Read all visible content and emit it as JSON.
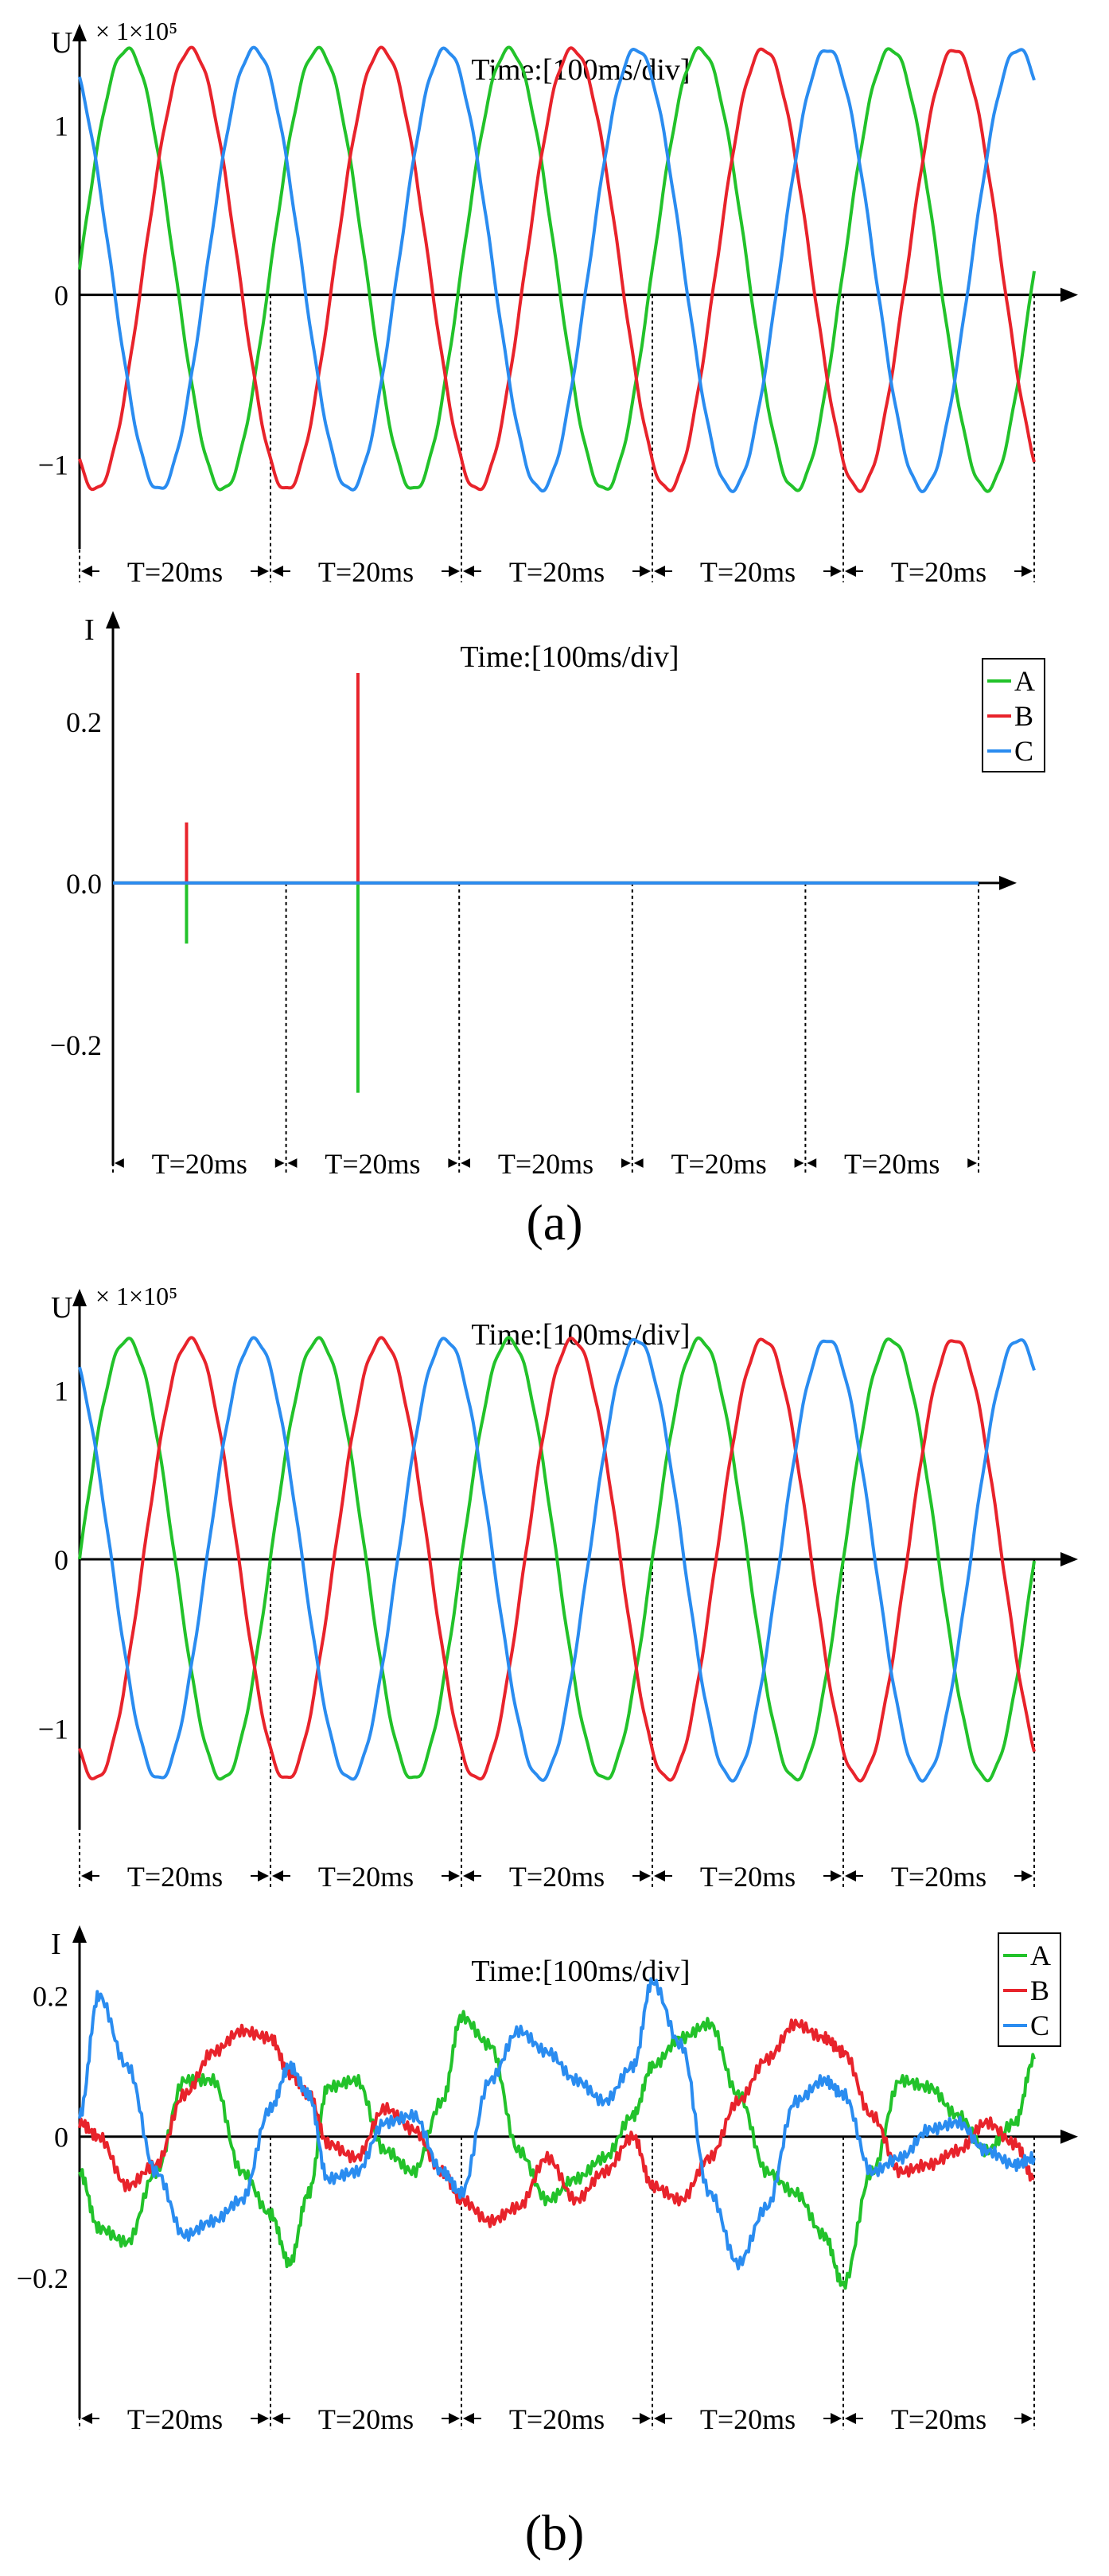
{
  "panel_labels": [
    "(a)",
    "(b)"
  ],
  "colors": {
    "A": "#22c22a",
    "B": "#e8232b",
    "C": "#2a8cf0",
    "axis": "#000000"
  },
  "chart_data": [
    {
      "id": "a-voltage",
      "type": "line",
      "ylabel": "U",
      "multiplier": "× 1×10⁵",
      "annotation": "Time:[100ms/div]",
      "y_ticks": [
        {
          "v": 1,
          "label": "1"
        },
        {
          "v": 0,
          "label": "0"
        },
        {
          "v": -1,
          "label": "−1"
        }
      ],
      "ylim": [
        -1.5,
        1.6
      ],
      "xlim": [
        0,
        100
      ],
      "period_labels": [
        "T=20ms",
        "T=20ms",
        "T=20ms",
        "T=20ms",
        "T=20ms"
      ],
      "legend": [],
      "series": [
        {
          "id": "A",
          "wave": "sine",
          "amplitude": 1.3,
          "offset": 0.15,
          "phase_deg": 0
        },
        {
          "id": "B",
          "wave": "sine",
          "amplitude": 1.3,
          "offset": 0.15,
          "phase_deg": -120
        },
        {
          "id": "C",
          "wave": "sine",
          "amplitude": 1.3,
          "offset": 0.15,
          "phase_deg": 120
        }
      ]
    },
    {
      "id": "a-current",
      "type": "line",
      "ylabel": "I",
      "multiplier": "",
      "annotation": "Time:[100ms/div]",
      "y_ticks": [
        {
          "v": 0.2,
          "label": "0.2"
        },
        {
          "v": 0,
          "label": "0.0"
        },
        {
          "v": -0.2,
          "label": "−0.2"
        }
      ],
      "ylim": [
        -0.35,
        0.33
      ],
      "xlim": [
        0,
        100
      ],
      "period_labels": [
        "T=20ms",
        "T=20ms",
        "T=20ms",
        "T=20ms",
        "T=20ms"
      ],
      "legend": [
        "A",
        "B",
        "C"
      ],
      "series": [
        {
          "id": "A",
          "flat": 0,
          "spikes": [
            {
              "t": 8.5,
              "v": -0.075
            },
            {
              "t": 28.3,
              "v": -0.26
            }
          ]
        },
        {
          "id": "B",
          "flat": 0,
          "spikes": [
            {
              "t": 8.5,
              "v": 0.075
            },
            {
              "t": 28.3,
              "v": 0.26
            }
          ]
        },
        {
          "id": "C",
          "flat": 0,
          "spikes": []
        }
      ]
    },
    {
      "id": "b-voltage",
      "type": "line",
      "ylabel": "U",
      "multiplier": "× 1×10⁵",
      "annotation": "Time:[100ms/div]",
      "y_ticks": [
        {
          "v": 1,
          "label": "1"
        },
        {
          "v": 0,
          "label": "0"
        },
        {
          "v": -1,
          "label": "−1"
        }
      ],
      "ylim": [
        -1.6,
        1.6
      ],
      "xlim": [
        0,
        100
      ],
      "period_labels": [
        "T=20ms",
        "T=20ms",
        "T=20ms",
        "T=20ms",
        "T=20ms"
      ],
      "legend": [],
      "series": [
        {
          "id": "A",
          "wave": "sine",
          "amplitude": 1.3,
          "offset": 0,
          "phase_deg": 0
        },
        {
          "id": "B",
          "wave": "sine",
          "amplitude": 1.3,
          "offset": 0,
          "phase_deg": -120
        },
        {
          "id": "C",
          "wave": "sine",
          "amplitude": 1.3,
          "offset": 0,
          "phase_deg": 120
        }
      ]
    },
    {
      "id": "b-current",
      "type": "line",
      "ylabel": "I",
      "multiplier": "",
      "annotation": "Time:[100ms/div]",
      "y_ticks": [
        {
          "v": 0.2,
          "label": "0.2"
        },
        {
          "v": 0,
          "label": "0"
        },
        {
          "v": -0.2,
          "label": "−0.2"
        }
      ],
      "ylim": [
        -0.4,
        0.3
      ],
      "xlim": [
        0,
        100
      ],
      "period_labels": [
        "T=20ms",
        "T=20ms",
        "T=20ms",
        "T=20ms",
        "T=20ms"
      ],
      "legend": [
        "A",
        "B",
        "C"
      ],
      "series": [
        {
          "id": "A",
          "x": [
            0,
            2,
            5,
            8,
            11,
            14,
            17,
            20,
            22,
            24,
            26,
            29,
            32,
            35,
            38,
            40,
            43,
            46,
            49,
            52,
            55,
            58,
            60,
            63,
            66,
            69,
            72,
            75,
            78,
            80,
            83,
            86,
            89,
            92,
            95,
            98,
            100
          ],
          "y": [
            -0.05,
            -0.13,
            -0.15,
            -0.05,
            0.08,
            0.08,
            -0.05,
            -0.11,
            -0.18,
            -0.08,
            0.07,
            0.08,
            -0.02,
            -0.05,
            0.05,
            0.17,
            0.13,
            -0.02,
            -0.09,
            -0.06,
            -0.03,
            0.03,
            0.1,
            0.14,
            0.16,
            0.06,
            -0.05,
            -0.08,
            -0.14,
            -0.21,
            -0.05,
            0.08,
            0.07,
            0.03,
            -0.02,
            0.02,
            0.11
          ]
        },
        {
          "id": "B",
          "x": [
            0,
            2,
            5,
            8,
            11,
            14,
            17,
            20,
            22,
            24,
            26,
            29,
            32,
            35,
            38,
            40,
            43,
            46,
            49,
            52,
            55,
            58,
            60,
            63,
            66,
            69,
            72,
            75,
            78,
            80,
            83,
            86,
            89,
            92,
            95,
            98,
            100
          ],
          "y": [
            0.02,
            0,
            -0.07,
            -0.04,
            0.06,
            0.12,
            0.15,
            0.14,
            0.09,
            0.06,
            -0.01,
            -0.03,
            0.04,
            0.01,
            -0.05,
            -0.09,
            -0.12,
            -0.1,
            -0.03,
            -0.09,
            -0.05,
            0,
            -0.07,
            -0.09,
            -0.03,
            0.05,
            0.11,
            0.16,
            0.14,
            0.12,
            0.03,
            -0.05,
            -0.04,
            -0.02,
            0.02,
            -0.01,
            -0.06
          ]
        },
        {
          "id": "C",
          "x": [
            0,
            2,
            5,
            8,
            11,
            14,
            17,
            20,
            22,
            24,
            26,
            29,
            32,
            35,
            38,
            40,
            43,
            46,
            49,
            52,
            55,
            58,
            60,
            63,
            66,
            69,
            72,
            75,
            78,
            80,
            83,
            86,
            89,
            92,
            95,
            98,
            100
          ],
          "y": [
            0.03,
            0.2,
            0.1,
            -0.05,
            -0.14,
            -0.12,
            -0.09,
            0.04,
            0.1,
            0.06,
            -0.06,
            -0.05,
            0.02,
            0.03,
            -0.05,
            -0.08,
            0.08,
            0.15,
            0.12,
            0.08,
            0.05,
            0.1,
            0.22,
            0.13,
            -0.08,
            -0.18,
            -0.1,
            0.05,
            0.08,
            0.06,
            -0.05,
            -0.03,
            0.01,
            0.02,
            -0.02,
            -0.04,
            -0.03
          ]
        }
      ]
    }
  ]
}
